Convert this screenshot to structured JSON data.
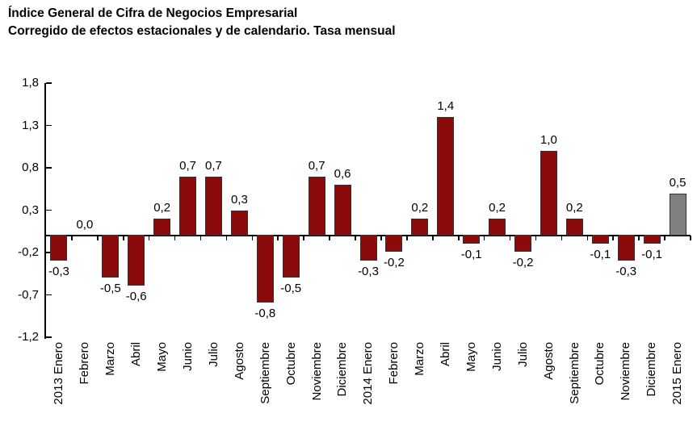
{
  "title": {
    "line1": "Índice General de Cifra de Negocios Empresarial",
    "line2": "Corregido de efectos estacionales y de calendario. Tasa mensual"
  },
  "colors": {
    "bar": "#8B0B0B",
    "bar_border": "#333333",
    "highlight_bar": "#808080",
    "axis": "#000000",
    "text": "#000000",
    "background": "#FFFFFF"
  },
  "chart_data": {
    "type": "bar",
    "title": "Índice General de Cifra de Negocios Empresarial",
    "subtitle": "Corregido de efectos estacionales y de calendario. Tasa mensual",
    "xlabel": "",
    "ylabel": "",
    "grid": false,
    "legend": "none",
    "ylim": [
      -1.2,
      1.8
    ],
    "y_ticks": [
      1.8,
      1.3,
      0.8,
      0.3,
      -0.2,
      -0.7,
      -1.2
    ],
    "y_tick_labels": [
      "1,8",
      "1,3",
      "0,8",
      "0,3",
      "-0,2",
      "-0,7",
      "-1,2"
    ],
    "categories": [
      "2013 Enero",
      "Febrero",
      "Marzo",
      "Abril",
      "Mayo",
      "Junio",
      "Julio",
      "Agosto",
      "Septiembre",
      "Octubre",
      "Noviembre",
      "Diciembre",
      "2014 Enero",
      "Febrero",
      "Marzo",
      "Abril",
      "Mayo",
      "Junio",
      "Julio",
      "Agosto",
      "Septiembre",
      "Octubre",
      "Noviembre",
      "Diciembre",
      "2015 Enero"
    ],
    "values": [
      -0.3,
      0.0,
      -0.5,
      -0.6,
      0.2,
      0.7,
      0.7,
      0.3,
      -0.8,
      -0.5,
      0.7,
      0.6,
      -0.3,
      -0.2,
      0.2,
      1.4,
      -0.1,
      0.2,
      -0.2,
      1.0,
      0.2,
      -0.1,
      -0.3,
      -0.1,
      0.5
    ],
    "value_labels": [
      "-0,3",
      "0,0",
      "-0,5",
      "-0,6",
      "0,2",
      "0,7",
      "0,7",
      "0,3",
      "-0,8",
      "-0,5",
      "0,7",
      "0,6",
      "-0,3",
      "-0,2",
      "0,2",
      "1,4",
      "-0,1",
      "0,2",
      "-0,2",
      "1,0",
      "0,2",
      "-0,1",
      "-0,3",
      "-0,1",
      "0,5"
    ],
    "highlight_index": 24
  }
}
